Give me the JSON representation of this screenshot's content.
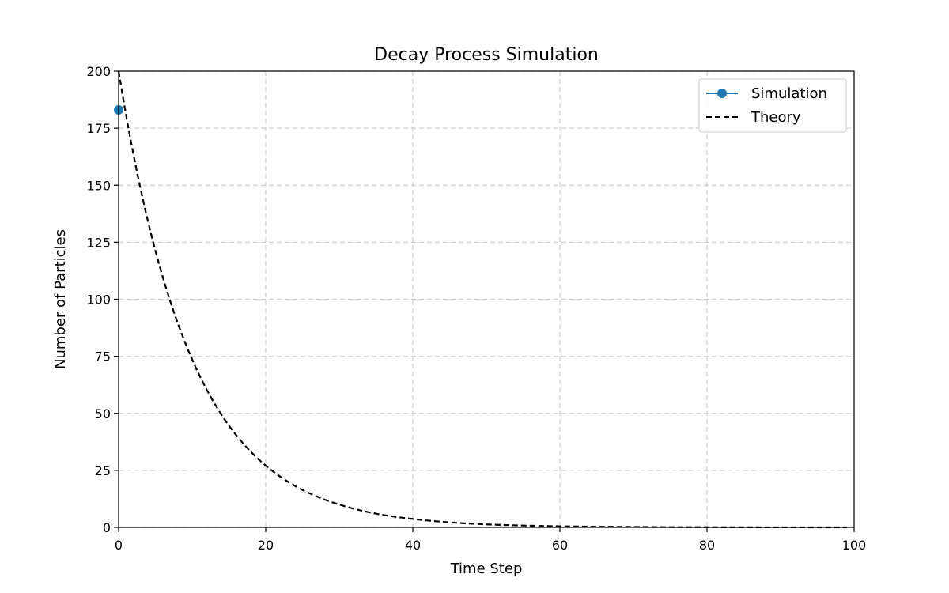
{
  "chart_data": {
    "type": "line",
    "title": "Decay Process Simulation",
    "xlabel": "Time Step",
    "ylabel": "Number of Particles",
    "xlim": [
      0,
      100
    ],
    "ylim": [
      0,
      200
    ],
    "xticks": [
      0,
      20,
      40,
      60,
      80,
      100
    ],
    "yticks": [
      0,
      25,
      50,
      75,
      100,
      125,
      150,
      175,
      200
    ],
    "grid": true,
    "legend_position": "top-right",
    "series": [
      {
        "name": "Simulation",
        "style": "line-marker",
        "color": "#1f77b4",
        "x": [
          0
        ],
        "y": [
          183
        ]
      },
      {
        "name": "Theory",
        "style": "dashed",
        "color": "#000000",
        "x": [
          0,
          5,
          10,
          15,
          20,
          25,
          30,
          35,
          40,
          45,
          50,
          55,
          60,
          65,
          70,
          75,
          80,
          85,
          90,
          95,
          99
        ],
        "y": [
          200,
          121.3,
          73.6,
          44.6,
          27.1,
          16.4,
          10.0,
          6.0,
          3.7,
          2.2,
          1.3,
          0.8,
          0.5,
          0.3,
          0.2,
          0.1,
          0.07,
          0.04,
          0.02,
          0.01,
          0.01
        ]
      }
    ]
  }
}
